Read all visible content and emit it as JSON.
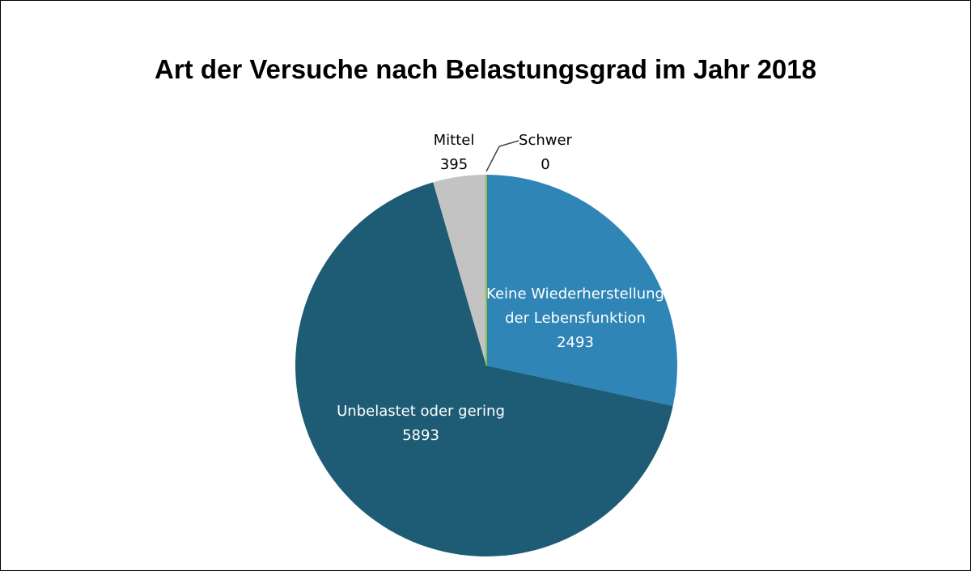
{
  "chart_data": {
    "type": "pie",
    "title": "Art der Versuche nach Belastungsgrad im Jahr 2018",
    "slices": [
      {
        "label": "Keine Wiederherstellung der Lebensfunktion",
        "label_lines": [
          "Keine Wiederherstellung",
          "der Lebensfunktion"
        ],
        "value": 2493,
        "value_label": "2493",
        "color": "#2e85b6",
        "text_color": "#ffffff"
      },
      {
        "label": "Unbelastet oder gering",
        "label_lines": [
          "Unbelastet oder gering"
        ],
        "value": 5893,
        "value_label": "5893",
        "color": "#1d5c74",
        "text_color": "#ffffff"
      },
      {
        "label": "Mittel",
        "label_lines": [
          "Mittel"
        ],
        "value": 395,
        "value_label": "395",
        "color": "#c3c3c3",
        "text_color": "#000000"
      },
      {
        "label": "Schwer",
        "label_lines": [
          "Schwer"
        ],
        "value": 0,
        "value_label": "0",
        "color": "#8bbf3f",
        "text_color": "#000000"
      }
    ],
    "start_angle_deg": 0,
    "direction": "clockwise",
    "legend": "none"
  }
}
